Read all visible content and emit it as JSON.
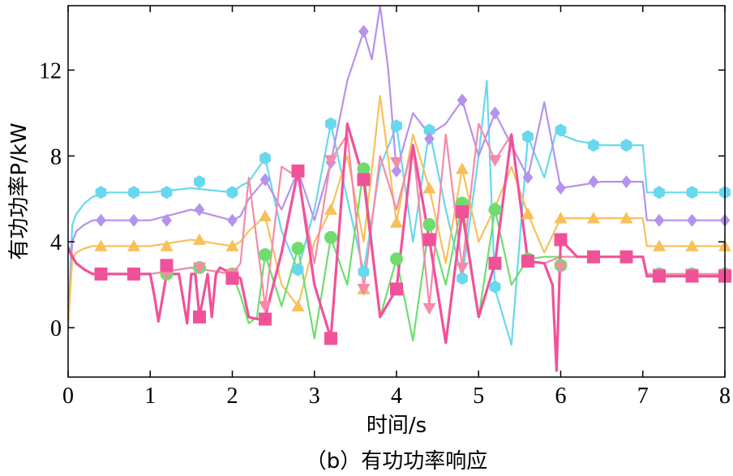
{
  "chart_data": {
    "type": "line",
    "caption": "（b）有功功率响应",
    "xlabel": "时间/s",
    "ylabel": "有功功率P/kW",
    "xlim": [
      0,
      8
    ],
    "ylim": [
      -2.3,
      15
    ],
    "xticks": [
      0,
      1,
      2,
      3,
      4,
      5,
      6,
      7,
      8
    ],
    "yticks": [
      0,
      4,
      8,
      12
    ],
    "grid": false,
    "legend": "none",
    "series": [
      {
        "color": "#68d8ee",
        "marker": "hexagon",
        "x": [
          0,
          0.05,
          0.1,
          0.2,
          0.3,
          0.5,
          1.0,
          1.5,
          2.0,
          2.1,
          2.2,
          2.4,
          2.6,
          2.8,
          3.0,
          3.2,
          3.4,
          3.6,
          3.8,
          4.0,
          4.2,
          4.4,
          4.6,
          4.8,
          5.0,
          5.1,
          5.2,
          5.4,
          5.6,
          5.8,
          5.95,
          6.0,
          6.2,
          6.5,
          7.0,
          7.05,
          7.2,
          7.5,
          8.0
        ],
        "y": [
          0,
          4.8,
          5.3,
          5.8,
          6.1,
          6.3,
          6.3,
          6.5,
          6.3,
          6.6,
          6.8,
          7.9,
          4.5,
          2.7,
          5.5,
          9.5,
          6.0,
          2.6,
          7.5,
          9.4,
          4.0,
          9.2,
          5.5,
          2.3,
          8.0,
          11.5,
          1.8,
          -0.8,
          8.9,
          7.0,
          9.2,
          9.0,
          8.7,
          8.5,
          8.5,
          6.3,
          6.3,
          6.3,
          6.3
        ],
        "markers": [
          [
            0.4,
            6.3
          ],
          [
            0.8,
            6.3
          ],
          [
            1.2,
            6.3
          ],
          [
            1.6,
            6.8
          ],
          [
            2.0,
            6.3
          ],
          [
            2.4,
            7.9
          ],
          [
            2.8,
            2.7
          ],
          [
            3.2,
            9.5
          ],
          [
            3.6,
            2.6
          ],
          [
            4.0,
            9.4
          ],
          [
            4.4,
            9.2
          ],
          [
            4.8,
            2.3
          ],
          [
            5.2,
            1.9
          ],
          [
            5.6,
            8.9
          ],
          [
            6.0,
            9.2
          ],
          [
            6.4,
            8.5
          ],
          [
            6.8,
            8.5
          ],
          [
            7.2,
            6.3
          ],
          [
            7.6,
            6.3
          ],
          [
            8.0,
            6.3
          ]
        ]
      },
      {
        "color": "#b592ee",
        "marker": "diamond",
        "x": [
          0,
          0.05,
          0.1,
          0.2,
          0.3,
          0.5,
          1.0,
          1.5,
          2.0,
          2.1,
          2.2,
          2.4,
          2.6,
          2.8,
          3.0,
          3.2,
          3.4,
          3.6,
          3.7,
          3.8,
          3.9,
          4.0,
          4.2,
          4.4,
          4.6,
          4.8,
          5.0,
          5.2,
          5.4,
          5.6,
          5.8,
          6.0,
          6.5,
          7.0,
          7.05,
          7.2,
          7.5,
          8.0
        ],
        "y": [
          0,
          4.0,
          4.5,
          4.8,
          5.0,
          5.0,
          5.0,
          5.5,
          5.0,
          5.2,
          6.0,
          6.9,
          5.5,
          7.3,
          5.0,
          7.7,
          11.5,
          13.8,
          12.5,
          15.0,
          12.0,
          7.3,
          10.0,
          9.0,
          9.5,
          10.6,
          8.0,
          10.0,
          8.5,
          7.0,
          10.5,
          6.5,
          6.8,
          6.8,
          5.0,
          5.0,
          5.0,
          5.0
        ],
        "markers": [
          [
            0.4,
            5.0
          ],
          [
            0.8,
            5.0
          ],
          [
            1.2,
            5.0
          ],
          [
            1.6,
            5.5
          ],
          [
            2.0,
            5.0
          ],
          [
            2.4,
            6.9
          ],
          [
            2.8,
            7.3
          ],
          [
            3.2,
            7.7
          ],
          [
            3.6,
            13.8
          ],
          [
            4.0,
            7.3
          ],
          [
            4.4,
            8.8
          ],
          [
            4.8,
            10.6
          ],
          [
            5.2,
            10.0
          ],
          [
            5.6,
            7.0
          ],
          [
            6.0,
            6.5
          ],
          [
            6.4,
            6.8
          ],
          [
            6.8,
            6.8
          ],
          [
            7.2,
            5.0
          ],
          [
            7.6,
            5.0
          ],
          [
            8.0,
            5.0
          ]
        ]
      },
      {
        "color": "#f8c05a",
        "marker": "triangle-up",
        "x": [
          0,
          0.05,
          0.1,
          0.2,
          0.3,
          0.5,
          1.0,
          1.5,
          2.0,
          2.1,
          2.2,
          2.4,
          2.6,
          2.8,
          3.0,
          3.2,
          3.4,
          3.6,
          3.8,
          4.0,
          4.2,
          4.4,
          4.6,
          4.8,
          5.0,
          5.2,
          5.4,
          5.6,
          5.8,
          6.0,
          6.5,
          7.0,
          7.05,
          7.2,
          7.5,
          8.0
        ],
        "y": [
          0,
          3.2,
          3.5,
          3.7,
          3.8,
          3.8,
          3.8,
          4.1,
          3.8,
          4.0,
          4.5,
          5.2,
          2.0,
          1.0,
          4.0,
          5.5,
          8.0,
          4.0,
          10.8,
          4.9,
          9.0,
          6.5,
          3.0,
          7.4,
          4.0,
          5.6,
          7.5,
          5.3,
          3.5,
          5.1,
          5.1,
          5.1,
          3.8,
          3.8,
          3.8,
          3.8
        ],
        "markers": [
          [
            0.4,
            3.8
          ],
          [
            0.8,
            3.8
          ],
          [
            1.2,
            3.8
          ],
          [
            1.6,
            4.1
          ],
          [
            2.0,
            3.8
          ],
          [
            2.4,
            5.2
          ],
          [
            2.8,
            1.0
          ],
          [
            3.2,
            5.5
          ],
          [
            3.6,
            1.8
          ],
          [
            4.0,
            4.9
          ],
          [
            4.4,
            6.5
          ],
          [
            4.8,
            7.4
          ],
          [
            5.2,
            5.6
          ],
          [
            5.6,
            5.3
          ],
          [
            6.0,
            5.1
          ],
          [
            6.4,
            5.1
          ],
          [
            6.8,
            5.1
          ],
          [
            7.2,
            3.8
          ],
          [
            7.6,
            3.8
          ],
          [
            8.0,
            3.8
          ]
        ]
      },
      {
        "color": "#6edd6e",
        "marker": "circle",
        "x": [
          0,
          0.05,
          0.1,
          0.2,
          0.3,
          0.5,
          1.0,
          1.5,
          2.0,
          2.1,
          2.2,
          2.3,
          2.4,
          2.6,
          2.8,
          3.0,
          3.2,
          3.4,
          3.6,
          3.8,
          4.0,
          4.2,
          4.4,
          4.6,
          4.8,
          5.0,
          5.2,
          5.4,
          5.6,
          5.8,
          6.0,
          6.5,
          7.0,
          7.05,
          7.2,
          7.5,
          8.0
        ],
        "y": [
          3.8,
          3.4,
          3.0,
          2.7,
          2.5,
          2.5,
          2.5,
          2.8,
          2.5,
          1.5,
          0.2,
          0.5,
          3.4,
          1.0,
          3.7,
          -0.5,
          4.2,
          2.0,
          7.4,
          0.5,
          3.2,
          -0.6,
          4.8,
          2.0,
          5.8,
          0.5,
          5.5,
          2.0,
          3.2,
          3.3,
          3.3,
          3.3,
          3.3,
          2.5,
          2.5,
          2.5,
          2.5
        ],
        "markers": [
          [
            0.4,
            2.5
          ],
          [
            0.8,
            2.5
          ],
          [
            1.2,
            2.5
          ],
          [
            1.6,
            2.8
          ],
          [
            2.0,
            2.5
          ],
          [
            2.4,
            3.4
          ],
          [
            2.8,
            3.7
          ],
          [
            3.2,
            4.2
          ],
          [
            3.6,
            7.4
          ],
          [
            4.0,
            3.2
          ],
          [
            4.4,
            4.8
          ],
          [
            4.8,
            5.8
          ],
          [
            5.2,
            5.5
          ],
          [
            5.6,
            3.2
          ],
          [
            6.0,
            2.9
          ],
          [
            6.4,
            3.3
          ],
          [
            6.8,
            3.3
          ],
          [
            7.2,
            2.5
          ],
          [
            7.6,
            2.5
          ],
          [
            8.0,
            2.5
          ]
        ]
      },
      {
        "color": "#f68aa8",
        "marker": "triangle-down",
        "x": [
          0,
          0.05,
          0.1,
          0.2,
          0.3,
          0.5,
          1.0,
          1.5,
          2.0,
          2.1,
          2.2,
          2.4,
          2.6,
          2.8,
          3.0,
          3.2,
          3.4,
          3.6,
          3.8,
          4.0,
          4.2,
          4.4,
          4.6,
          4.8,
          5.0,
          5.2,
          5.4,
          5.6,
          5.8,
          6.0,
          6.5,
          7.0,
          7.05,
          7.2,
          7.5,
          8.0
        ],
        "y": [
          3.8,
          3.4,
          3.0,
          2.7,
          2.5,
          2.5,
          2.5,
          2.8,
          2.5,
          3.0,
          7.0,
          1.0,
          7.5,
          7.0,
          3.0,
          7.8,
          9.0,
          1.8,
          8.0,
          5.5,
          8.5,
          1.0,
          9.0,
          2.8,
          9.5,
          7.8,
          9.0,
          3.1,
          3.0,
          3.3,
          3.3,
          3.3,
          2.5,
          2.5,
          2.5,
          2.5
        ],
        "markers": [
          [
            0.4,
            2.5
          ],
          [
            0.8,
            2.5
          ],
          [
            1.2,
            2.5
          ],
          [
            1.6,
            2.8
          ],
          [
            2.0,
            2.5
          ],
          [
            2.4,
            1.0
          ],
          [
            2.8,
            7.3
          ],
          [
            3.2,
            7.8
          ],
          [
            3.6,
            1.8
          ],
          [
            4.0,
            7.7
          ],
          [
            4.4,
            0.9
          ],
          [
            4.8,
            2.8
          ],
          [
            5.2,
            7.8
          ],
          [
            5.6,
            3.1
          ],
          [
            6.0,
            2.8
          ],
          [
            6.4,
            3.3
          ],
          [
            6.8,
            3.3
          ],
          [
            7.2,
            2.5
          ],
          [
            7.6,
            2.5
          ],
          [
            8.0,
            2.5
          ]
        ]
      },
      {
        "color": "#f0529a",
        "marker": "square",
        "x": [
          0,
          0.05,
          0.1,
          0.2,
          0.3,
          0.5,
          1.0,
          1.05,
          1.1,
          1.2,
          1.35,
          1.45,
          1.5,
          1.55,
          1.6,
          1.7,
          1.75,
          1.8,
          1.85,
          2.0,
          2.1,
          2.2,
          2.3,
          2.4,
          2.6,
          2.8,
          3.0,
          3.2,
          3.4,
          3.6,
          3.8,
          4.0,
          4.2,
          4.4,
          4.6,
          4.8,
          5.0,
          5.2,
          5.4,
          5.6,
          5.8,
          5.9,
          5.95,
          6.0,
          6.2,
          6.5,
          7.0,
          7.05,
          7.2,
          7.5,
          8.0
        ],
        "y": [
          3.7,
          3.3,
          3.0,
          2.7,
          2.5,
          2.5,
          2.5,
          1.5,
          0.3,
          2.5,
          2.5,
          0.2,
          2.5,
          2.5,
          0.5,
          2.5,
          0.5,
          2.5,
          2.8,
          2.5,
          2.3,
          0.5,
          0.4,
          0.5,
          3.5,
          7.3,
          2.0,
          -0.5,
          9.5,
          6.9,
          0.5,
          1.8,
          8.5,
          4.1,
          -0.7,
          5.4,
          0.5,
          3.0,
          9.0,
          3.1,
          3.0,
          2.0,
          -2.0,
          4.1,
          3.3,
          3.3,
          3.3,
          2.4,
          2.4,
          2.4,
          2.4
        ],
        "markers": [
          [
            0.4,
            2.5
          ],
          [
            0.8,
            2.5
          ],
          [
            1.2,
            2.9
          ],
          [
            1.6,
            0.5
          ],
          [
            2.0,
            2.3
          ],
          [
            2.4,
            0.4
          ],
          [
            2.8,
            7.3
          ],
          [
            3.2,
            -0.5
          ],
          [
            3.6,
            6.9
          ],
          [
            4.0,
            1.8
          ],
          [
            4.4,
            4.1
          ],
          [
            4.8,
            5.4
          ],
          [
            5.2,
            3.0
          ],
          [
            5.6,
            3.1
          ],
          [
            6.0,
            4.1
          ],
          [
            6.4,
            3.3
          ],
          [
            6.8,
            3.3
          ],
          [
            7.2,
            2.4
          ],
          [
            7.6,
            2.4
          ],
          [
            8.0,
            2.4
          ]
        ]
      }
    ]
  }
}
